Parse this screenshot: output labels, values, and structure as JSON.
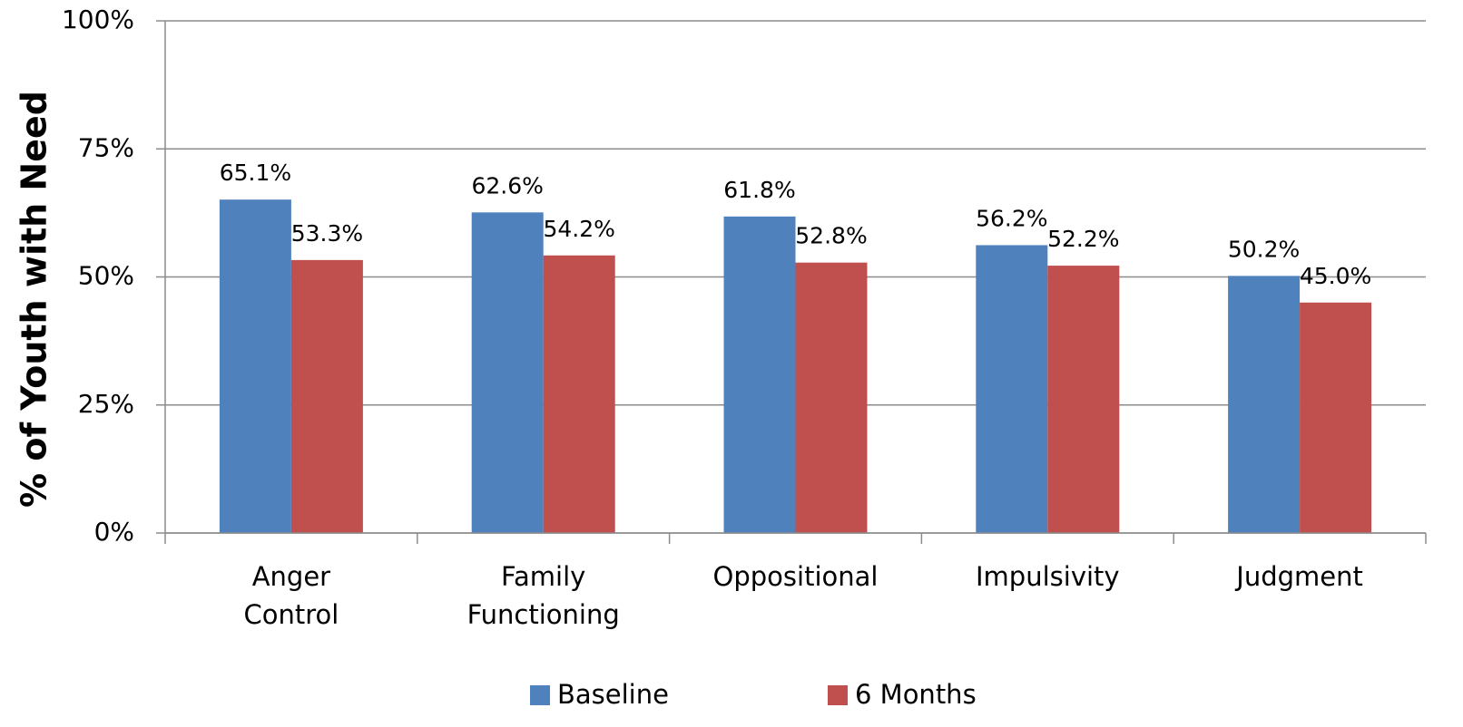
{
  "chart_data": {
    "type": "bar",
    "y_label": "% of Youth with Need",
    "categories": [
      "Anger Control",
      "Family Functioning",
      "Oppositional",
      "Impulsivity",
      "Judgment"
    ],
    "series": [
      {
        "name": "Baseline",
        "color": "#4f81bd",
        "values": [
          65.1,
          62.6,
          61.8,
          56.2,
          50.2
        ],
        "value_labels": [
          "65.1%",
          "62.6%",
          "61.8%",
          "56.2%",
          "50.2%"
        ]
      },
      {
        "name": "6 Months",
        "color": "#c0504d",
        "values": [
          53.3,
          54.2,
          52.8,
          52.2,
          45.0
        ],
        "value_labels": [
          "53.3%",
          "54.2%",
          "52.8%",
          "52.2%",
          "45.0%"
        ]
      }
    ],
    "ylim": [
      0,
      100
    ],
    "yticks": [
      {
        "value": 0,
        "label": "0%"
      },
      {
        "value": 25,
        "label": "25%"
      },
      {
        "value": 50,
        "label": "50%"
      },
      {
        "value": 75,
        "label": "75%"
      },
      {
        "value": 100,
        "label": "100%"
      }
    ],
    "grid": true,
    "legend": "bottom"
  }
}
